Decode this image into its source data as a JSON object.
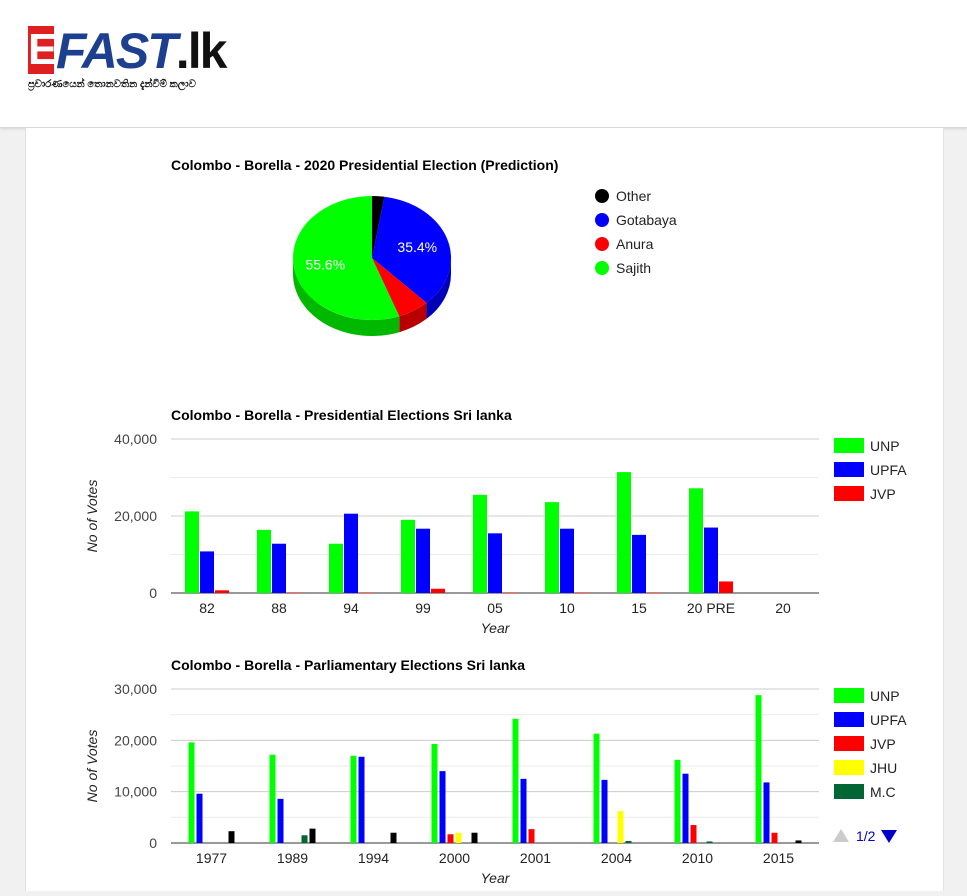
{
  "site": {
    "logo_e": "E",
    "logo_text": "FAST",
    "logo_tld": ".lk",
    "tagline": "ප්‍රචාරණයෙන් තොනවතින දැන්වීම් කලාව"
  },
  "colors": {
    "green": "#00ff00",
    "blue": "#0000ff",
    "red": "#ff0000",
    "yellow": "#ffff00",
    "darkgreen": "#006633",
    "black": "#000000"
  },
  "chart_data": [
    {
      "type": "pie",
      "title": "Colombo - Borella - 2020 Presidential Election (Prediction)",
      "slices": [
        {
          "name": "Other",
          "value": 2.5,
          "color": "#000000",
          "label": ""
        },
        {
          "name": "Gotabaya",
          "value": 35.4,
          "color": "#0000ff",
          "label": "35.4%"
        },
        {
          "name": "Anura",
          "value": 6.5,
          "color": "#ff0000",
          "label": ""
        },
        {
          "name": "Sajith",
          "value": 55.6,
          "color": "#00ff00",
          "label": "55.6%"
        }
      ],
      "legend_position": "right"
    },
    {
      "type": "bar",
      "title": "Colombo - Borella - Presidential Elections Sri lanka",
      "xlabel": "Year",
      "ylabel": "No of Votes",
      "ylim": [
        0,
        40000
      ],
      "yticks": [
        "0",
        "20,000",
        "40,000"
      ],
      "categories": [
        "82",
        "88",
        "94",
        "99",
        "05",
        "10",
        "15",
        "20 PRE",
        "20"
      ],
      "series": [
        {
          "name": "UNP",
          "color": "#00ff00",
          "values": [
            21200,
            16400,
            12800,
            19000,
            25500,
            23600,
            31400,
            27200,
            0
          ]
        },
        {
          "name": "UPFA",
          "color": "#0000ff",
          "values": [
            10800,
            12800,
            20600,
            16700,
            15500,
            16700,
            15100,
            17000,
            0
          ]
        },
        {
          "name": "JVP",
          "color": "#ff0000",
          "values": [
            700,
            150,
            150,
            1100,
            150,
            150,
            150,
            3000,
            0
          ]
        }
      ],
      "legend_position": "right"
    },
    {
      "type": "bar",
      "title": "Colombo - Borella - Parliamentary Elections Sri lanka",
      "xlabel": "Year",
      "ylabel": "No of Votes",
      "ylim": [
        0,
        30000
      ],
      "yticks": [
        "0",
        "10,000",
        "20,000",
        "30,000"
      ],
      "categories": [
        "1977",
        "1989",
        "1994",
        "2000",
        "2001",
        "2004",
        "2010",
        "2015"
      ],
      "series": [
        {
          "name": "UNP",
          "color": "#00ff00",
          "values": [
            19600,
            17200,
            17000,
            19300,
            24200,
            21300,
            16200,
            28800
          ]
        },
        {
          "name": "UPFA",
          "color": "#0000ff",
          "values": [
            9600,
            8600,
            16800,
            14000,
            12500,
            12300,
            13500,
            11800
          ]
        },
        {
          "name": "JVP",
          "color": "#ff0000",
          "values": [
            0,
            0,
            0,
            1700,
            2700,
            0,
            3500,
            2000
          ]
        },
        {
          "name": "JHU",
          "color": "#ffff00",
          "values": [
            0,
            0,
            0,
            2000,
            0,
            6200,
            0,
            0
          ]
        },
        {
          "name": "M.C",
          "color": "#006633",
          "values": [
            0,
            1500,
            0,
            0,
            0,
            400,
            300,
            0
          ]
        },
        {
          "name": "",
          "color": "#000000",
          "values": [
            2300,
            2800,
            2000,
            2000,
            0,
            0,
            0,
            500
          ]
        }
      ],
      "legend_position": "right",
      "legend_page": "1/2"
    }
  ]
}
